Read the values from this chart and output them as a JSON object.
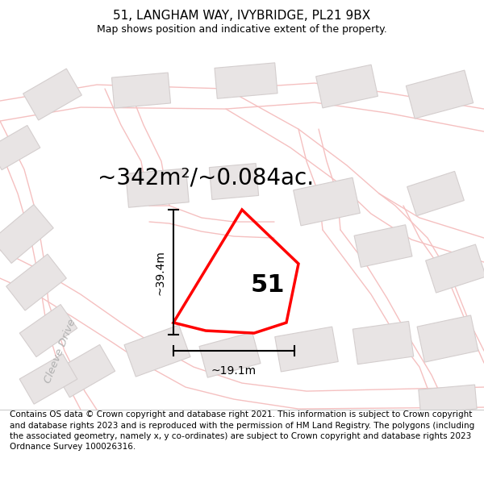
{
  "title_line1": "51, LANGHAM WAY, IVYBRIDGE, PL21 9BX",
  "title_line2": "Map shows position and indicative extent of the property.",
  "area_text": "~342m²/~0.084ac.",
  "label_number": "51",
  "dim_height": "~39.4m",
  "dim_width": "~19.1m",
  "footnote": "Contains OS data © Crown copyright and database right 2021. This information is subject to Crown copyright and database rights 2023 and is reproduced with the permission of HM Land Registry. The polygons (including the associated geometry, namely x, y co-ordinates) are subject to Crown copyright and database rights 2023 Ordnance Survey 100026316.",
  "map_bg": "#ffffff",
  "road_color": "#f5c0c0",
  "building_fill": "#e8e4e4",
  "building_edge": "#d4cece",
  "plot_color": "#ff0000",
  "street_label": "Cleeve Drive",
  "title_fontsize": 11,
  "subtitle_fontsize": 9,
  "area_fontsize": 20,
  "number_fontsize": 22,
  "dim_fontsize": 10,
  "foot_fontsize": 7.5
}
